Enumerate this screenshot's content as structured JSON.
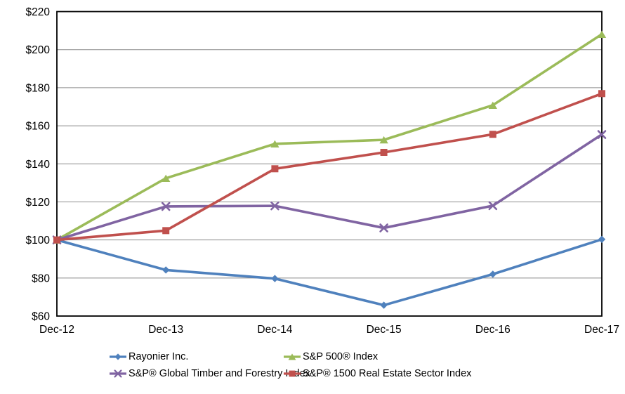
{
  "chart_data": {
    "type": "line",
    "title": "",
    "xlabel": "",
    "ylabel": "",
    "categories": [
      "Dec-12",
      "Dec-13",
      "Dec-14",
      "Dec-15",
      "Dec-16",
      "Dec-17"
    ],
    "y_ticks": [
      "$60",
      "$80",
      "$100",
      "$120",
      "$140",
      "$160",
      "$180",
      "$200",
      "$220"
    ],
    "y_tick_values": [
      60,
      80,
      100,
      120,
      140,
      160,
      180,
      200,
      220
    ],
    "ylim": [
      60,
      220
    ],
    "grid": "horizontal",
    "grid_color": "#8c8c8c",
    "axis_color": "#000000",
    "legend_position": "bottom-two-columns",
    "series": [
      {
        "name": "Rayonier Inc.",
        "color": "#4F81BD",
        "marker": "diamond",
        "values": [
          100,
          84.2,
          79.7,
          65.7,
          82.0,
          100.3
        ]
      },
      {
        "name": "S&P 500® Index",
        "color": "#9BBB59",
        "marker": "triangle",
        "values": [
          100,
          132.4,
          150.5,
          152.6,
          170.8,
          208.1
        ]
      },
      {
        "name": "S&P® Global Timber and Forestry Index",
        "color": "#8064A2",
        "marker": "x",
        "values": [
          100,
          117.6,
          117.9,
          106.3,
          118.0,
          155.4
        ]
      },
      {
        "name": "S&P® 1500 Real Estate Sector Index",
        "color": "#C0504D",
        "marker": "square",
        "values": [
          100,
          104.9,
          137.4,
          146.0,
          155.5,
          176.9
        ]
      }
    ]
  }
}
